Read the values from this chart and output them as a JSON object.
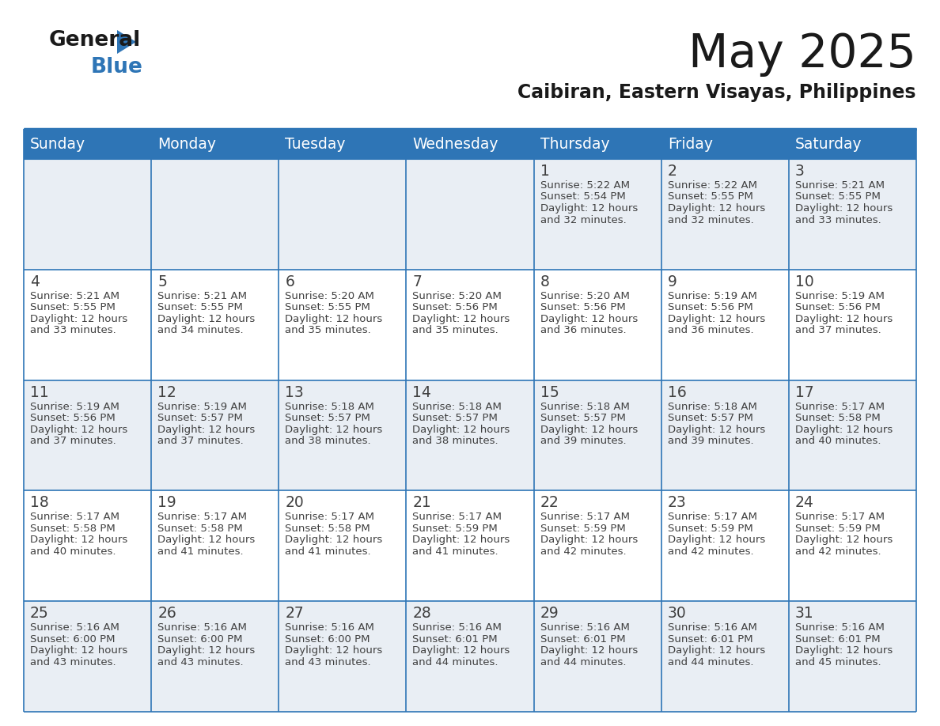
{
  "title": "May 2025",
  "subtitle": "Caibiran, Eastern Visayas, Philippines",
  "days_of_week": [
    "Sunday",
    "Monday",
    "Tuesday",
    "Wednesday",
    "Thursday",
    "Friday",
    "Saturday"
  ],
  "header_bg": "#2E75B6",
  "header_text_color": "#FFFFFF",
  "row_bg_light": "#E9EEF4",
  "row_bg_white": "#FFFFFF",
  "border_color": "#2E75B6",
  "text_color": "#404040",
  "day_number_color": "#404040",
  "logo_color1": "#1a1a1a",
  "logo_color2": "#2E75B6",
  "calendar_data": [
    {
      "day": 1,
      "col": 4,
      "row": 0,
      "sunrise": "5:22 AM",
      "sunset": "5:54 PM",
      "daylight": "12 hours",
      "daylight2": "and 32 minutes."
    },
    {
      "day": 2,
      "col": 5,
      "row": 0,
      "sunrise": "5:22 AM",
      "sunset": "5:55 PM",
      "daylight": "12 hours",
      "daylight2": "and 32 minutes."
    },
    {
      "day": 3,
      "col": 6,
      "row": 0,
      "sunrise": "5:21 AM",
      "sunset": "5:55 PM",
      "daylight": "12 hours",
      "daylight2": "and 33 minutes."
    },
    {
      "day": 4,
      "col": 0,
      "row": 1,
      "sunrise": "5:21 AM",
      "sunset": "5:55 PM",
      "daylight": "12 hours",
      "daylight2": "and 33 minutes."
    },
    {
      "day": 5,
      "col": 1,
      "row": 1,
      "sunrise": "5:21 AM",
      "sunset": "5:55 PM",
      "daylight": "12 hours",
      "daylight2": "and 34 minutes."
    },
    {
      "day": 6,
      "col": 2,
      "row": 1,
      "sunrise": "5:20 AM",
      "sunset": "5:55 PM",
      "daylight": "12 hours",
      "daylight2": "and 35 minutes."
    },
    {
      "day": 7,
      "col": 3,
      "row": 1,
      "sunrise": "5:20 AM",
      "sunset": "5:56 PM",
      "daylight": "12 hours",
      "daylight2": "and 35 minutes."
    },
    {
      "day": 8,
      "col": 4,
      "row": 1,
      "sunrise": "5:20 AM",
      "sunset": "5:56 PM",
      "daylight": "12 hours",
      "daylight2": "and 36 minutes."
    },
    {
      "day": 9,
      "col": 5,
      "row": 1,
      "sunrise": "5:19 AM",
      "sunset": "5:56 PM",
      "daylight": "12 hours",
      "daylight2": "and 36 minutes."
    },
    {
      "day": 10,
      "col": 6,
      "row": 1,
      "sunrise": "5:19 AM",
      "sunset": "5:56 PM",
      "daylight": "12 hours",
      "daylight2": "and 37 minutes."
    },
    {
      "day": 11,
      "col": 0,
      "row": 2,
      "sunrise": "5:19 AM",
      "sunset": "5:56 PM",
      "daylight": "12 hours",
      "daylight2": "and 37 minutes."
    },
    {
      "day": 12,
      "col": 1,
      "row": 2,
      "sunrise": "5:19 AM",
      "sunset": "5:57 PM",
      "daylight": "12 hours",
      "daylight2": "and 37 minutes."
    },
    {
      "day": 13,
      "col": 2,
      "row": 2,
      "sunrise": "5:18 AM",
      "sunset": "5:57 PM",
      "daylight": "12 hours",
      "daylight2": "and 38 minutes."
    },
    {
      "day": 14,
      "col": 3,
      "row": 2,
      "sunrise": "5:18 AM",
      "sunset": "5:57 PM",
      "daylight": "12 hours",
      "daylight2": "and 38 minutes."
    },
    {
      "day": 15,
      "col": 4,
      "row": 2,
      "sunrise": "5:18 AM",
      "sunset": "5:57 PM",
      "daylight": "12 hours",
      "daylight2": "and 39 minutes."
    },
    {
      "day": 16,
      "col": 5,
      "row": 2,
      "sunrise": "5:18 AM",
      "sunset": "5:57 PM",
      "daylight": "12 hours",
      "daylight2": "and 39 minutes."
    },
    {
      "day": 17,
      "col": 6,
      "row": 2,
      "sunrise": "5:17 AM",
      "sunset": "5:58 PM",
      "daylight": "12 hours",
      "daylight2": "and 40 minutes."
    },
    {
      "day": 18,
      "col": 0,
      "row": 3,
      "sunrise": "5:17 AM",
      "sunset": "5:58 PM",
      "daylight": "12 hours",
      "daylight2": "and 40 minutes."
    },
    {
      "day": 19,
      "col": 1,
      "row": 3,
      "sunrise": "5:17 AM",
      "sunset": "5:58 PM",
      "daylight": "12 hours",
      "daylight2": "and 41 minutes."
    },
    {
      "day": 20,
      "col": 2,
      "row": 3,
      "sunrise": "5:17 AM",
      "sunset": "5:58 PM",
      "daylight": "12 hours",
      "daylight2": "and 41 minutes."
    },
    {
      "day": 21,
      "col": 3,
      "row": 3,
      "sunrise": "5:17 AM",
      "sunset": "5:59 PM",
      "daylight": "12 hours",
      "daylight2": "and 41 minutes."
    },
    {
      "day": 22,
      "col": 4,
      "row": 3,
      "sunrise": "5:17 AM",
      "sunset": "5:59 PM",
      "daylight": "12 hours",
      "daylight2": "and 42 minutes."
    },
    {
      "day": 23,
      "col": 5,
      "row": 3,
      "sunrise": "5:17 AM",
      "sunset": "5:59 PM",
      "daylight": "12 hours",
      "daylight2": "and 42 minutes."
    },
    {
      "day": 24,
      "col": 6,
      "row": 3,
      "sunrise": "5:17 AM",
      "sunset": "5:59 PM",
      "daylight": "12 hours",
      "daylight2": "and 42 minutes."
    },
    {
      "day": 25,
      "col": 0,
      "row": 4,
      "sunrise": "5:16 AM",
      "sunset": "6:00 PM",
      "daylight": "12 hours",
      "daylight2": "and 43 minutes."
    },
    {
      "day": 26,
      "col": 1,
      "row": 4,
      "sunrise": "5:16 AM",
      "sunset": "6:00 PM",
      "daylight": "12 hours",
      "daylight2": "and 43 minutes."
    },
    {
      "day": 27,
      "col": 2,
      "row": 4,
      "sunrise": "5:16 AM",
      "sunset": "6:00 PM",
      "daylight": "12 hours",
      "daylight2": "and 43 minutes."
    },
    {
      "day": 28,
      "col": 3,
      "row": 4,
      "sunrise": "5:16 AM",
      "sunset": "6:01 PM",
      "daylight": "12 hours",
      "daylight2": "and 44 minutes."
    },
    {
      "day": 29,
      "col": 4,
      "row": 4,
      "sunrise": "5:16 AM",
      "sunset": "6:01 PM",
      "daylight": "12 hours",
      "daylight2": "and 44 minutes."
    },
    {
      "day": 30,
      "col": 5,
      "row": 4,
      "sunrise": "5:16 AM",
      "sunset": "6:01 PM",
      "daylight": "12 hours",
      "daylight2": "and 44 minutes."
    },
    {
      "day": 31,
      "col": 6,
      "row": 4,
      "sunrise": "5:16 AM",
      "sunset": "6:01 PM",
      "daylight": "12 hours",
      "daylight2": "and 45 minutes."
    }
  ]
}
